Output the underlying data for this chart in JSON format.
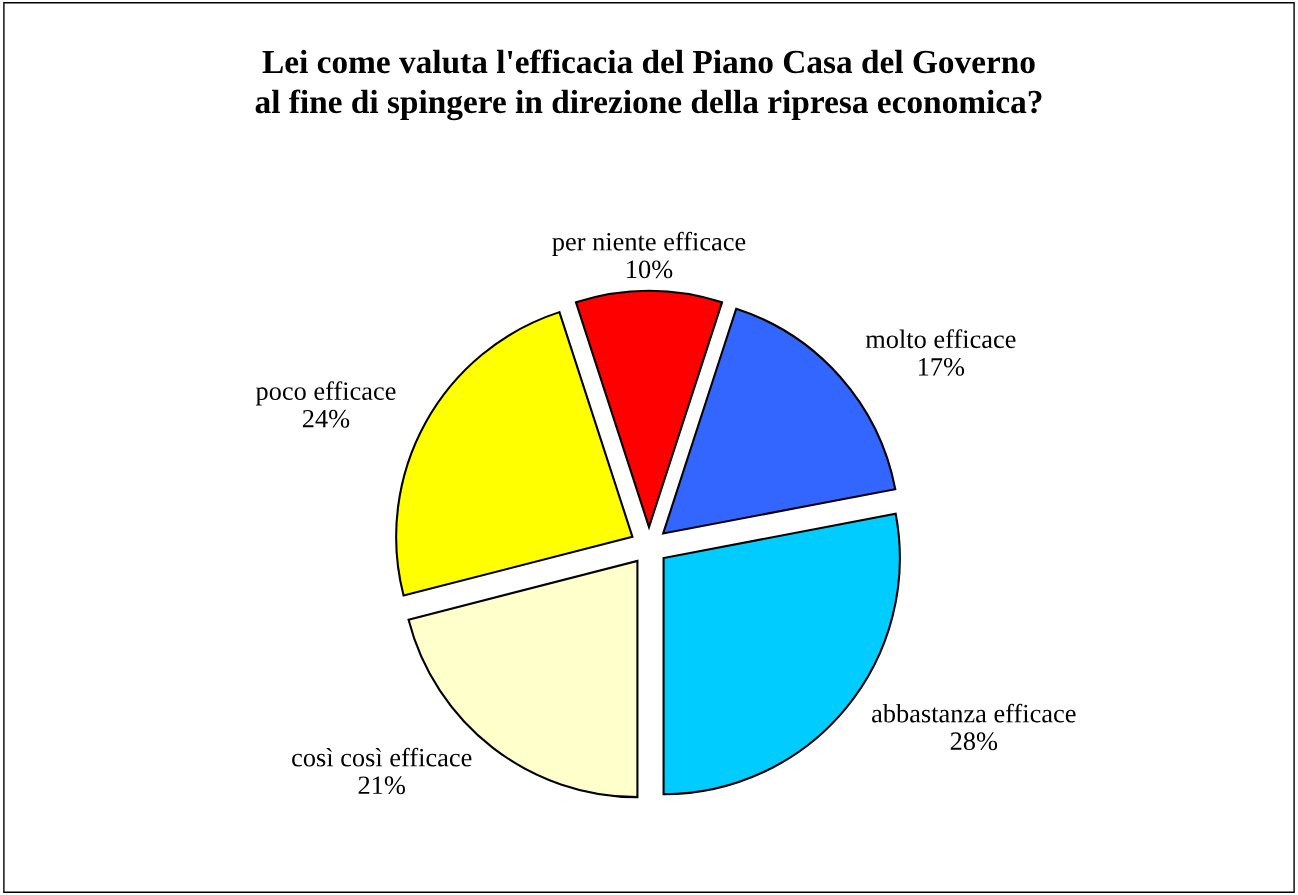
{
  "chart_data": {
    "type": "pie",
    "title": "Lei come valuta l'efficacia del Piano Casa del Governo\nal fine di spingere in direzione della ripresa economica?",
    "categories": [
      "per niente efficace",
      "molto efficace",
      "abbastanza efficace",
      "così così efficace",
      "poco efficace"
    ],
    "values": [
      10,
      17,
      28,
      21,
      24
    ],
    "value_labels": [
      "10%",
      "17%",
      "28%",
      "21%",
      "24%"
    ],
    "colors": [
      "#ff0000",
      "#3366ff",
      "#00ccff",
      "#ffffcc",
      "#ffff00"
    ],
    "legend": false
  }
}
